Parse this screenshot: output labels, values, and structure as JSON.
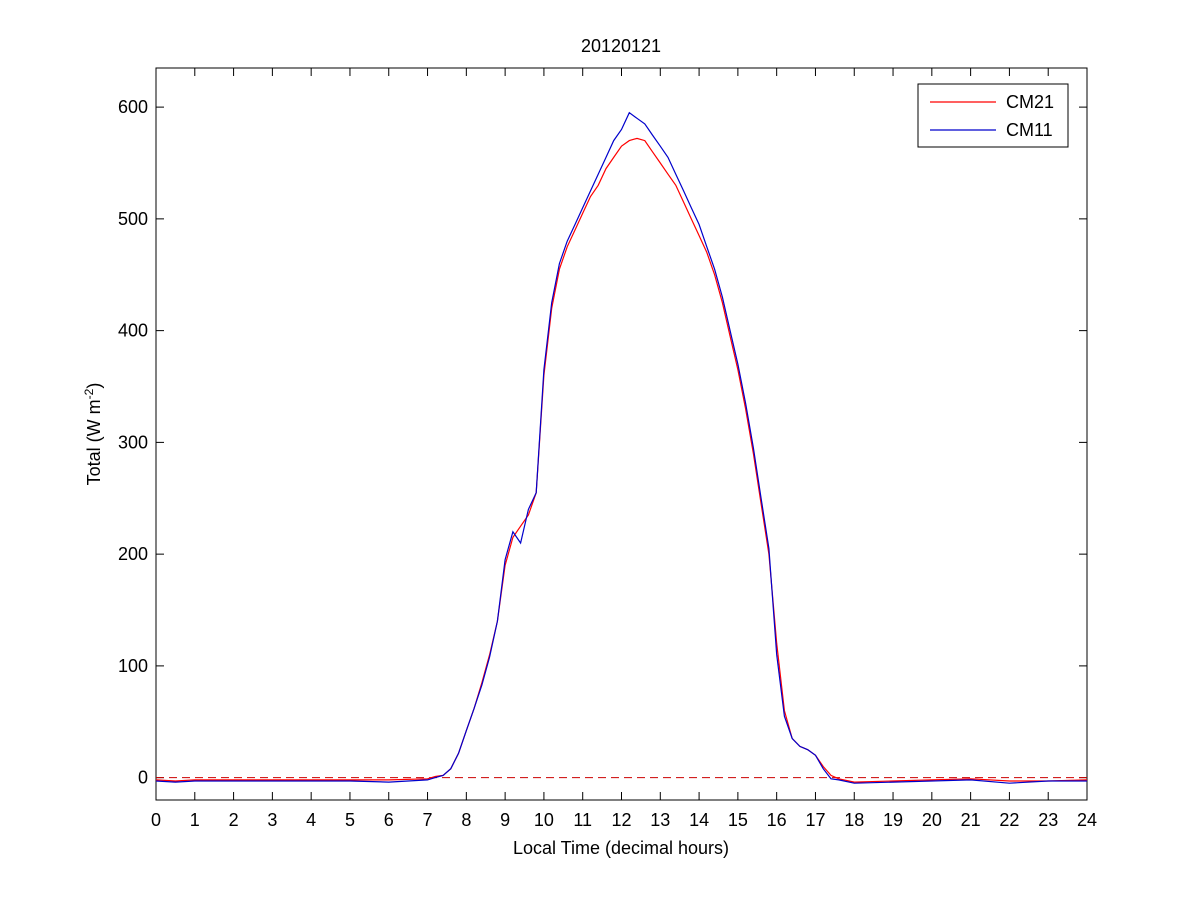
{
  "chart_data": {
    "type": "line",
    "title": "20120121",
    "xlabel": "Local Time (decimal hours)",
    "ylabel": {
      "base": "Total (W m",
      "exponent": "-2",
      "close": ")"
    },
    "xlim": [
      0,
      24
    ],
    "ylim": [
      -20,
      635
    ],
    "xticks": [
      0,
      1,
      2,
      3,
      4,
      5,
      6,
      7,
      8,
      9,
      10,
      11,
      12,
      13,
      14,
      15,
      16,
      17,
      18,
      19,
      20,
      21,
      22,
      23,
      24
    ],
    "yticks": [
      0,
      100,
      200,
      300,
      400,
      500,
      600
    ],
    "grid": false,
    "legend_position": "top-right",
    "reference_line": {
      "y": 0,
      "style": "dashed",
      "color": "#cc0000"
    },
    "series": [
      {
        "name": "CM21",
        "color": "#ff0000",
        "x": [
          0,
          0.5,
          1,
          2,
          3,
          4,
          5,
          6,
          7,
          7.2,
          7.4,
          7.6,
          7.8,
          8.0,
          8.2,
          8.4,
          8.6,
          8.8,
          9.0,
          9.2,
          9.4,
          9.6,
          9.8,
          10.0,
          10.2,
          10.4,
          10.6,
          10.8,
          11.0,
          11.2,
          11.4,
          11.6,
          11.8,
          12.0,
          12.2,
          12.4,
          12.6,
          12.8,
          13.0,
          13.2,
          13.4,
          13.6,
          13.8,
          14.0,
          14.2,
          14.4,
          14.6,
          14.8,
          15.0,
          15.2,
          15.4,
          15.6,
          15.8,
          16.0,
          16.2,
          16.4,
          16.6,
          16.8,
          17.0,
          17.2,
          17.4,
          17.6,
          18.0,
          19.0,
          20.0,
          21.0,
          22.0,
          23.0,
          24.0
        ],
        "y": [
          -2,
          -3,
          -2,
          -2,
          -2,
          -2,
          -2,
          -2,
          -1,
          1,
          2,
          8,
          22,
          42,
          62,
          85,
          110,
          140,
          190,
          215,
          225,
          235,
          255,
          360,
          420,
          455,
          475,
          490,
          505,
          520,
          530,
          545,
          555,
          565,
          570,
          572,
          570,
          560,
          550,
          540,
          530,
          515,
          500,
          485,
          470,
          450,
          425,
          395,
          365,
          330,
          290,
          245,
          200,
          120,
          60,
          35,
          28,
          25,
          20,
          10,
          2,
          -1,
          -4,
          -3,
          -2,
          -1,
          -3,
          -3,
          -2
        ]
      },
      {
        "name": "CM11",
        "color": "#0000cc",
        "x": [
          0,
          0.5,
          1,
          2,
          3,
          4,
          5,
          6,
          7,
          7.2,
          7.4,
          7.6,
          7.8,
          8.0,
          8.2,
          8.4,
          8.6,
          8.8,
          9.0,
          9.2,
          9.4,
          9.6,
          9.8,
          10.0,
          10.2,
          10.4,
          10.6,
          10.8,
          11.0,
          11.2,
          11.4,
          11.6,
          11.8,
          12.0,
          12.2,
          12.4,
          12.6,
          12.8,
          13.0,
          13.2,
          13.4,
          13.6,
          13.8,
          14.0,
          14.2,
          14.4,
          14.6,
          14.8,
          15.0,
          15.2,
          15.4,
          15.6,
          15.8,
          16.0,
          16.2,
          16.4,
          16.6,
          16.8,
          17.0,
          17.2,
          17.4,
          17.6,
          18.0,
          19.0,
          20.0,
          21.0,
          22.0,
          23.0,
          24.0
        ],
        "y": [
          -3,
          -4,
          -3,
          -3,
          -3,
          -3,
          -3,
          -4,
          -2,
          0,
          2,
          8,
          22,
          42,
          62,
          83,
          108,
          140,
          195,
          220,
          210,
          240,
          255,
          365,
          425,
          460,
          480,
          495,
          510,
          525,
          540,
          555,
          570,
          580,
          595,
          590,
          585,
          575,
          565,
          555,
          540,
          525,
          510,
          495,
          475,
          455,
          430,
          400,
          370,
          335,
          295,
          250,
          205,
          110,
          55,
          35,
          28,
          25,
          20,
          8,
          -1,
          -2,
          -5,
          -4,
          -3,
          -2,
          -5,
          -3,
          -3
        ]
      }
    ]
  }
}
